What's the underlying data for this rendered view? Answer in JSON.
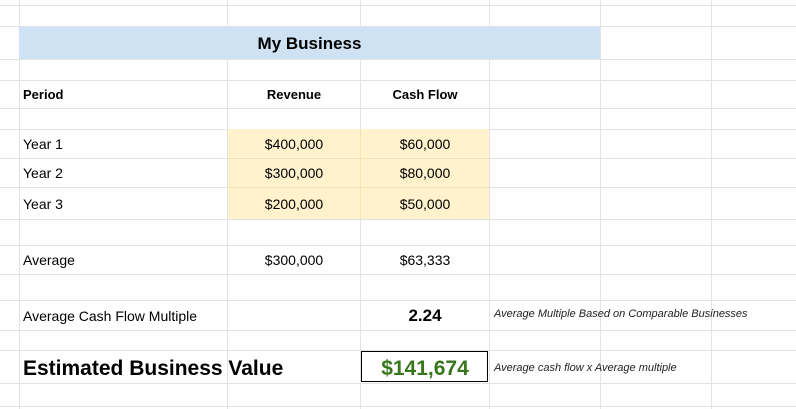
{
  "sheet": {
    "title": "My Business",
    "headers": {
      "period": "Period",
      "revenue": "Revenue",
      "cash_flow": "Cash Flow"
    },
    "rows": [
      {
        "period": "Year 1",
        "revenue": "$400,000",
        "cash_flow": "$60,000"
      },
      {
        "period": "Year 2",
        "revenue": "$300,000",
        "cash_flow": "$80,000"
      },
      {
        "period": "Year 3",
        "revenue": "$200,000",
        "cash_flow": "$50,000"
      }
    ],
    "average": {
      "label": "Average",
      "revenue": "$300,000",
      "cash_flow": "$63,333"
    },
    "multiple": {
      "label": "Average Cash Flow Multiple",
      "value": "2.24",
      "note": "Average Multiple Based on Comparable Businesses"
    },
    "estimate": {
      "label": "Estimated Business Value",
      "value": "$141,674",
      "note": "Average cash flow x Average multiple"
    }
  },
  "colors": {
    "title_fill": "#cfe2f3",
    "input_fill": "#fff2cc",
    "value_green": "#38761d",
    "gridline": "#e2e3e3"
  }
}
